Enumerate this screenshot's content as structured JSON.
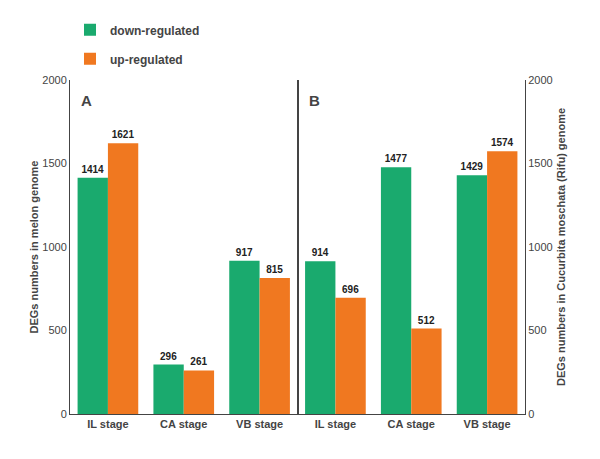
{
  "chart_data": [
    {
      "type": "bar",
      "title": "A",
      "categories": [
        "IL stage",
        "CA stage",
        "VB stage"
      ],
      "series": [
        {
          "name": "down-regulated",
          "color": "#1aaa6e",
          "values": [
            1414,
            296,
            917
          ]
        },
        {
          "name": "up-regulated",
          "color": "#f07820",
          "values": [
            1621,
            261,
            815
          ]
        }
      ],
      "ylabel": "DEGs numbers in melon genome",
      "ylim": [
        0,
        2000
      ],
      "yticks": [
        0,
        500,
        1000,
        1500,
        2000
      ],
      "data_labels": true,
      "grid": false,
      "legend": "upper left"
    },
    {
      "type": "bar",
      "title": "B",
      "categories": [
        "IL stage",
        "CA stage",
        "VB stage"
      ],
      "series": [
        {
          "name": "down-regulated",
          "color": "#1aaa6e",
          "values": [
            914,
            1477,
            1429
          ]
        },
        {
          "name": "up-regulated",
          "color": "#f07820",
          "values": [
            696,
            512,
            1574
          ]
        }
      ],
      "ylabel": "DEGs numbers in Cucurbita moschata (Rifu) genome",
      "ylim": [
        0,
        2000
      ],
      "yticks": [
        0,
        500,
        1000,
        1500,
        2000
      ],
      "data_labels": true,
      "grid": false
    }
  ]
}
